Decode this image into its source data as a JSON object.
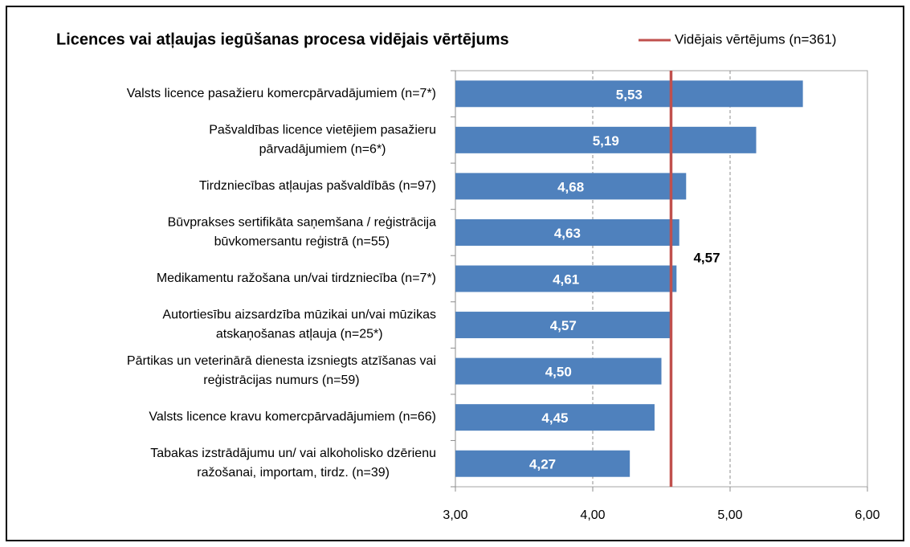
{
  "chart_data": {
    "type": "bar",
    "orientation": "horizontal",
    "title": "Licences vai atļaujas iegūšanas procesa vidējais vērtējums",
    "categories": [
      "Valsts licence pasažieru komercpārvadājumiem  (n=7*)",
      "Pašvaldības licence vietējiem pasažieru\npārvadājumiem (n=6*)",
      "Tirdzniecības atļaujas pašvaldībās (n=97)",
      "Būvprakses sertifikāta saņemšana / reģistrācija\nbūvkomersantu reģistrā (n=55)",
      "Medikamentu ražošana un/vai tirdzniecība  (n=7*)",
      "Autortiesību aizsardzība mūzikai un/vai mūzikas\natskaņošanas atļauja  (n=25*)",
      "Pārtikas un veterinārā dienesta izsniegts atzīšanas vai\nreģistrācijas numurs (n=59)",
      "Valsts licence kravu komercpārvadājumiem (n=66)",
      "Tabakas izstrādājumu un/ vai alkoholisko  dzērienu\nražošanai, importam, tirdz. (n=39)"
    ],
    "values": [
      5.53,
      5.19,
      4.68,
      4.63,
      4.61,
      4.57,
      4.5,
      4.45,
      4.27
    ],
    "value_labels": [
      "5,53",
      "5,19",
      "4,68",
      "4,63",
      "4,61",
      "4,57",
      "4,50",
      "4,45",
      "4,27"
    ],
    "color": "#4f81bd",
    "xlim": [
      3,
      6
    ],
    "xticks": [
      {
        "value": 3,
        "label": "3,00"
      },
      {
        "value": 4,
        "label": "4,00"
      },
      {
        "value": 5,
        "label": "5,00"
      },
      {
        "value": 6,
        "label": "6,00"
      }
    ],
    "grid": true,
    "reference_line": {
      "name": "Vidējais vērtējums (n=361)",
      "value": 4.57,
      "label": "4,57",
      "color": "#c0504d"
    }
  }
}
